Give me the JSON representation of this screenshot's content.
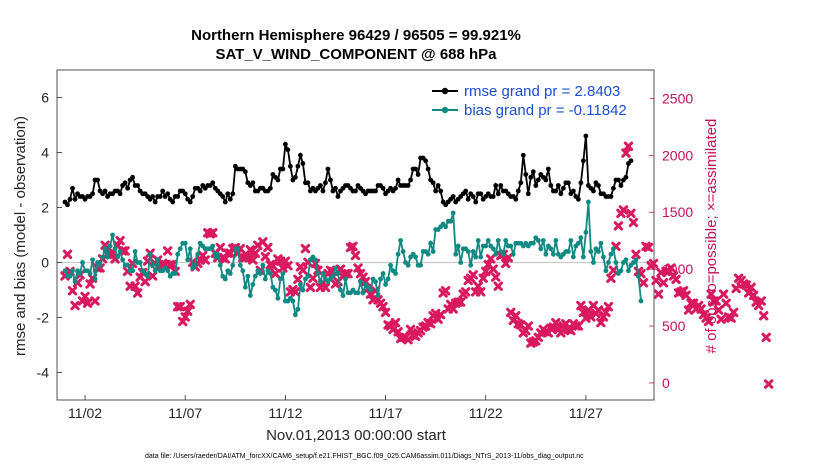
{
  "chart_data": {
    "type": "line",
    "title": "Northern Hemisphere 96429 / 96505 = 99.921%",
    "subtitle": "SAT_V_WIND_COMPONENT @ 688 hPa",
    "xlabel": "Nov.01,2013 00:00:00 start",
    "ylabel": "rmse and bias (model - observation)",
    "ylabel_right": "# of obs: o=possible; ×=assimilated",
    "footer": "data file: /Users/raeder/DAI/ATM_forcXX/CAM6_setup/f.e21.FHIST_BGC.f09_025.CAM6assim.011/Diags_NTrS_2013-11/obs_diag_output.nc",
    "xlim": [
      0.6,
      30.4
    ],
    "ylim": [
      -5,
      7
    ],
    "ylim_right": [
      -150,
      2750
    ],
    "xticks": [
      {
        "x": 2,
        "label": "11/02"
      },
      {
        "x": 7,
        "label": "11/07"
      },
      {
        "x": 12,
        "label": "11/12"
      },
      {
        "x": 17,
        "label": "11/17"
      },
      {
        "x": 22,
        "label": "11/22"
      },
      {
        "x": 27,
        "label": "11/27"
      }
    ],
    "yticks": [
      -4,
      -2,
      0,
      2,
      4,
      6
    ],
    "yticks_right": [
      0,
      500,
      1000,
      1500,
      2000,
      2500
    ],
    "grid": false,
    "legend_position": "top-right",
    "series": [
      {
        "name": "rmse grand pr = 2.8403",
        "color": "#000000",
        "marker": "circle",
        "values": [
          2.2,
          2.1,
          2.3,
          2.7,
          2.3,
          2.5,
          2.4,
          2.4,
          2.3,
          2.4,
          2.4,
          2.5,
          3,
          3,
          2.6,
          2.5,
          2.6,
          2.4,
          2.5,
          2.5,
          2.6,
          2.6,
          2.5,
          2.8,
          2.9,
          2.7,
          3,
          3.1,
          2.8,
          2.8,
          2.6,
          2.5,
          2.5,
          2.4,
          2.3,
          2.4,
          2.2,
          2.4,
          2.4,
          2.6,
          2.4,
          2.5,
          2.3,
          2.2,
          2.4,
          2.4,
          2.6,
          2.6,
          2.5,
          2.3,
          2.2,
          2.4,
          2.7,
          2.7,
          2.6,
          2.8,
          2.7,
          2.8,
          2.8,
          2.9,
          2.7,
          2.6,
          2.5,
          2.4,
          2.2,
          2.5,
          2.3,
          2.5,
          3.5,
          3.4,
          3.4,
          3.4,
          3.3,
          2.9,
          2.8,
          2.9,
          2.6,
          2.6,
          2.7,
          2.7,
          2.6,
          2.6,
          2.7,
          3.2,
          3.1,
          3,
          3.4,
          3.4,
          4.3,
          4.1,
          3.5,
          3,
          3.1,
          3.5,
          3.9,
          3.6,
          2.9,
          2.9,
          2.6,
          2.7,
          2.6,
          2.7,
          2.8,
          2.6,
          2.9,
          3.4,
          3,
          2.6,
          2.7,
          2.4,
          2.6,
          2.7,
          2.8,
          2.8,
          2.7,
          2.6,
          2.6,
          2.8,
          2.7,
          2.6,
          2.5,
          2.6,
          2.6,
          2.6,
          2.6,
          2.8,
          2.8,
          2.7,
          2.5,
          2.6,
          2.7,
          2.6,
          2.7,
          3,
          2.8,
          2.8,
          2.8,
          2.8,
          3,
          3.4,
          3.4,
          3.2,
          3.8,
          3.8,
          3.7,
          3.4,
          3,
          2.9,
          2.6,
          2.8,
          2.6,
          2.2,
          2.1,
          2.2,
          2.3,
          2.4,
          2.2,
          2.3,
          2.4,
          2.5,
          2.6,
          2.3,
          2.5,
          2.4,
          2.2,
          2.5,
          2.5,
          2.3,
          2.4,
          2.5,
          2.4,
          2.4,
          2.8,
          2.5,
          2.8,
          2.6,
          2.6,
          2.5,
          2.4,
          2.4,
          2.3,
          2.6,
          2.9,
          3.9,
          3.2,
          2.5,
          3.1,
          3.3,
          2.8,
          3,
          3.2,
          3.1,
          3,
          3.4,
          2.8,
          2.6,
          2.6,
          2.8,
          2.5,
          2.7,
          2.9,
          2.9,
          2.5,
          2.6,
          2.4,
          2.3,
          2.9,
          3.7,
          4.6,
          2.8,
          2.7,
          2.6,
          2.9,
          2.8,
          2.5,
          2.5,
          2.4,
          2.4,
          2.4,
          2.7,
          3,
          3,
          2.8,
          3,
          3.1,
          3.6,
          3.7
        ]
      },
      {
        "name": "bias grand pr = -0.11842",
        "color": "#0e8a82",
        "marker": "circle",
        "values": [
          -0.3,
          -0.5,
          -0.5,
          -0.3,
          -0.7,
          -0.3,
          -0.4,
          0,
          -0.3,
          -0.3,
          -0.4,
          0.1,
          -0.6,
          0,
          -0.1,
          0.2,
          0.5,
          0.2,
          0.6,
          1,
          0.5,
          0.2,
          0.4,
          0.1,
          -0.1,
          -0.1,
          -0.3,
          -0.3,
          0.4,
          0,
          0,
          -0.3,
          -0.4,
          -0.5,
          0.3,
          -0.1,
          -0.3,
          0.1,
          -0.3,
          -0.3,
          -0.2,
          -0.3,
          -0.5,
          -0.4,
          -0.4,
          0.3,
          0.5,
          0.7,
          0.7,
          0.1,
          0.5,
          -0.2,
          -0.1,
          0.3,
          0.7,
          0.6,
          0.5,
          0.5,
          0.5,
          0.6,
          0.2,
          0.3,
          -0.1,
          -0.5,
          -0.6,
          -0.3,
          -0.4,
          -0.1,
          0.5,
          0.5,
          -0.1,
          -0.3,
          -0.9,
          -0.5,
          -1.2,
          -0.8,
          -0.5,
          -0.3,
          -0.4,
          -0.1,
          -0.6,
          -0.3,
          -0.4,
          -0.9,
          -1,
          -1.3,
          -0.6,
          -0.4,
          -1.4,
          -1.4,
          -1.3,
          -1.4,
          -1.9,
          -1.7,
          -0.8,
          -1,
          -0.6,
          -0.5,
          0.1,
          0.2,
          0.1,
          -0.4,
          -0.7,
          -0.4,
          -0.6,
          -0.7,
          -0.6,
          -0.5,
          -0.2,
          -0.4,
          -1,
          -1.2,
          -0.6,
          -1.1,
          -1.1,
          -1,
          -1.1,
          -1.1,
          -0.7,
          -1.1,
          -0.8,
          -0.9,
          -1,
          -0.6,
          -0.7,
          -1.2,
          -0.6,
          -0.4,
          -0.8,
          -0.6,
          -0.1,
          -0.3,
          -0.4,
          0.3,
          0.8,
          0.4,
          0,
          -0.1,
          0.2,
          0.3,
          0.2,
          -0.1,
          -0.1,
          0.4,
          0.4,
          0.3,
          0.7,
          0.4,
          1.2,
          1.2,
          1.3,
          1.4,
          1.3,
          1.5,
          1.5,
          1.8,
          0.3,
          0.6,
          0,
          0.5,
          0.5,
          0.4,
          -0.1,
          0.4,
          0.2,
          0.8,
          0.2,
          0.6,
          0.6,
          0.8,
          0.6,
          0.5,
          0.3,
          0.8,
          0.4,
          0.3,
          0.8,
          0.6,
          0.6,
          0.3,
          0.7,
          0.7,
          0.7,
          0.6,
          0.7,
          0.6,
          0.7,
          0.7,
          0.9,
          0.8,
          0.5,
          0.8,
          0.3,
          0.6,
          0.5,
          0.3,
          0.8,
          0.3,
          0.2,
          0.3,
          0.4,
          0.4,
          0.8,
          0.2,
          0.6,
          0.7,
          0.9,
          0.2,
          1.1,
          2.2,
          0.4,
          0,
          0.5,
          0.4,
          0.7,
          0.2,
          -0.3,
          0,
          0.3,
          0.5,
          0,
          -0.4,
          -0.3,
          0,
          0.1,
          -0.3,
          -0.1,
          0,
          0.1,
          -0.5,
          -1.4
        ]
      },
      {
        "name": "# obs assimilated",
        "axis": "right",
        "color": "#d9185f",
        "marker": "x",
        "values": [
          940,
          1130,
          980,
          810,
          680,
          880,
          950,
          720,
          760,
          700,
          870,
          920,
          720,
          1010,
          1010,
          1090,
          1210,
          1130,
          1130,
          1150,
          1090,
          1210,
          1250,
          1160,
          1160,
          980,
          850,
          1050,
          850,
          790,
          930,
          970,
          890,
          1070,
          1140,
          940,
          1050,
          1080,
          1030,
          1050,
          1040,
          1160,
          1040,
          1040,
          980,
          670,
          670,
          540,
          580,
          630,
          690,
          1060,
          1020,
          1050,
          1080,
          1120,
          1080,
          1320,
          1310,
          1320,
          1140,
          1100,
          1190,
          1100,
          1090,
          1140,
          1140,
          1180,
          1190,
          1140,
          1180,
          1100,
          1100,
          1110,
          1170,
          1080,
          1140,
          1210,
          990,
          1240,
          1110,
          1190,
          1040,
          1030,
          960,
          1090,
          1070,
          1010,
          1070,
          1030,
          800,
          820,
          800,
          910,
          1020,
          990,
          1180,
          1060,
          840,
          920,
          1050,
          990,
          840,
          880,
          840,
          960,
          990,
          980,
          870,
          890,
          1000,
          940,
          960,
          960,
          1190,
          1200,
          1120,
          1010,
          960,
          930,
          890,
          830,
          780,
          730,
          810,
          730,
          700,
          670,
          620,
          510,
          500,
          470,
          530,
          450,
          390,
          400,
          400,
          380,
          470,
          420,
          410,
          440,
          460,
          490,
          500,
          530,
          520,
          590,
          610,
          560,
          600,
          790,
          810,
          650,
          690,
          650,
          700,
          710,
          710,
          780,
          800,
          900,
          920,
          950,
          800,
          850,
          800,
          920,
          980,
          1040,
          1090,
          1000,
          930,
          850,
          1120,
          1130,
          1050,
          1100,
          620,
          550,
          590,
          520,
          510,
          440,
          460,
          500,
          350,
          360,
          370,
          400,
          440,
          470,
          450,
          440,
          480,
          490,
          530,
          470,
          440,
          500,
          520,
          470,
          460,
          520,
          500,
          500,
          680,
          620,
          570,
          640,
          580,
          680,
          610,
          640,
          530,
          580,
          620,
          670,
          920,
          990,
          1200,
          1380,
          1490,
          1520,
          2020,
          2080,
          1490,
          1410,
          1130,
          980,
          960,
          880,
          1200,
          1190,
          1030,
          1050,
          900,
          780,
          970,
          880,
          980,
          980,
          1010,
          940,
          910,
          790,
          800,
          810,
          770,
          640,
          700,
          700,
          650,
          680,
          650,
          600,
          570,
          540,
          780,
          720,
          720,
          640,
          560,
          780,
          700,
          580,
          570,
          620,
          830,
          920,
          900,
          870,
          860,
          790,
          840,
          770,
          710,
          680,
          720,
          590,
          400,
          -10
        ]
      }
    ]
  }
}
